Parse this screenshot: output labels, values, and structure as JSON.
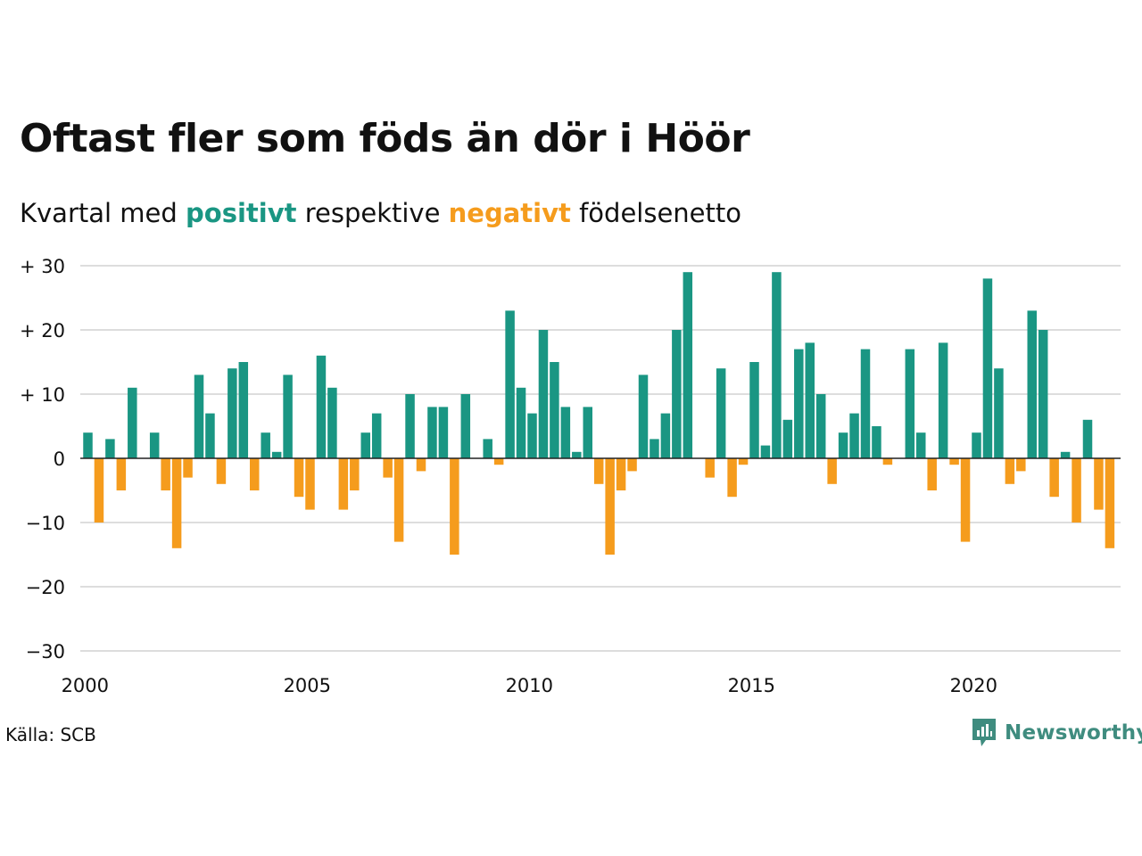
{
  "title": "Oftast fler som föds än dör i Höör",
  "subtitle": {
    "prefix": "Kvartal med ",
    "positive_word": "positivt",
    "middle": " respektive ",
    "negative_word": "negativt",
    "suffix": " födelsenetto"
  },
  "source": "Källa: SCB",
  "brand": "Newsworthy",
  "colors": {
    "positive": "#1a9683",
    "negative": "#f59c1d",
    "grid": "#dddddd",
    "zero_line": "#222222",
    "text": "#111111"
  },
  "chart_data": {
    "type": "bar",
    "y_ticks": [
      {
        "value": 30,
        "label": "+ 30"
      },
      {
        "value": 20,
        "label": "+ 20"
      },
      {
        "value": 10,
        "label": "+ 10"
      },
      {
        "value": 0,
        "label": "0"
      },
      {
        "value": -10,
        "label": "−10"
      },
      {
        "value": -20,
        "label": "−20"
      },
      {
        "value": -30,
        "label": "−30"
      }
    ],
    "x_ticks": [
      "2000",
      "2005",
      "2010",
      "2015",
      "2020"
    ],
    "ylim": [
      -30,
      30
    ],
    "grid": true,
    "start_year": 2000,
    "values": [
      4,
      -10,
      3,
      -5,
      11,
      0,
      4,
      -5,
      -14,
      -3,
      13,
      7,
      -4,
      14,
      15,
      -5,
      4,
      1,
      13,
      -6,
      -8,
      16,
      11,
      -8,
      -5,
      4,
      7,
      -3,
      -13,
      10,
      -2,
      8,
      8,
      -15,
      10,
      0,
      3,
      -1,
      23,
      11,
      7,
      20,
      15,
      8,
      1,
      8,
      -4,
      -15,
      -5,
      -2,
      13,
      3,
      7,
      20,
      29,
      0,
      -3,
      14,
      -6,
      -1,
      15,
      2,
      29,
      6,
      17,
      18,
      10,
      -4,
      4,
      7,
      17,
      5,
      -1,
      0,
      17,
      4,
      -5,
      18,
      -1,
      -13,
      4,
      28,
      14,
      -4,
      -2,
      23,
      20,
      -6,
      1,
      -10,
      6,
      -8,
      -14
    ]
  }
}
